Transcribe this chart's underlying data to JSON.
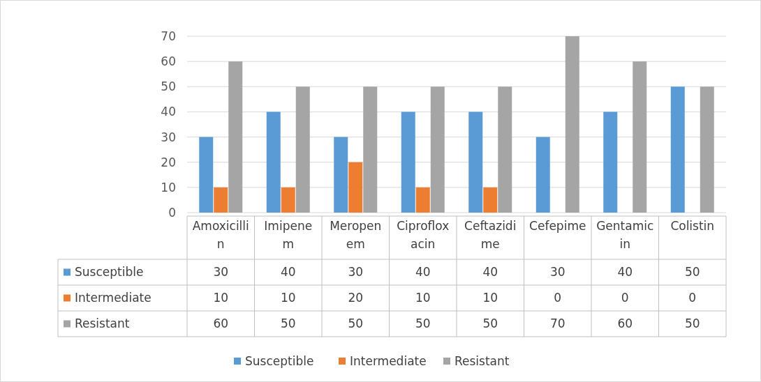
{
  "chart_data": {
    "type": "bar",
    "categories": [
      "Amoxicillin",
      "Imipenem",
      "Meropenem",
      "Ciprofloxacin",
      "Ceftazidime",
      "Cefepime",
      "Gentamicin",
      "Colistin"
    ],
    "series": [
      {
        "name": "Susceptible",
        "color": "#5b9bd5",
        "values": [
          30,
          40,
          30,
          40,
          40,
          30,
          40,
          50
        ]
      },
      {
        "name": "Intermediate",
        "color": "#ed7d31",
        "values": [
          10,
          10,
          20,
          10,
          10,
          0,
          0,
          0
        ]
      },
      {
        "name": "Resistant",
        "color": "#a5a5a5",
        "values": [
          60,
          50,
          50,
          50,
          50,
          70,
          60,
          50
        ]
      }
    ],
    "ylim": [
      0,
      70
    ],
    "yticks": [
      0,
      10,
      20,
      30,
      40,
      50,
      60,
      70
    ],
    "grid": "y",
    "legend": "bottom",
    "data_labels": true
  }
}
